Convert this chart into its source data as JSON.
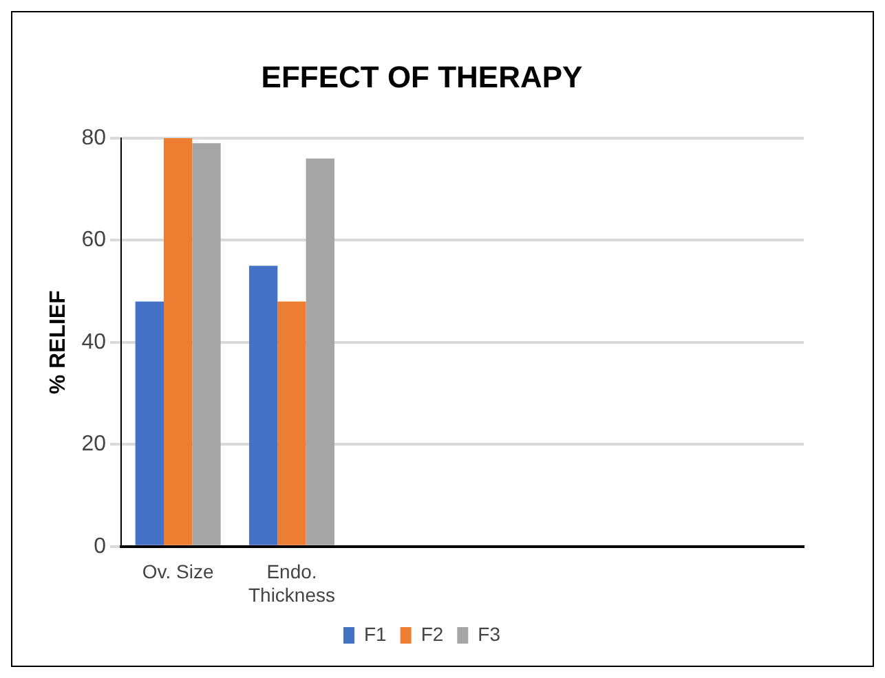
{
  "chart_data": {
    "type": "bar",
    "title": "EFFECT OF THERAPY",
    "ylabel": "% RELIEF",
    "categories": [
      "Ov. Size",
      "Endo. Thickness",
      null,
      null,
      null,
      null
    ],
    "series": [
      {
        "name": "F1",
        "color": "#4472c4",
        "values": [
          48,
          55,
          null,
          null,
          null,
          null
        ]
      },
      {
        "name": "F2",
        "color": "#ed7d31",
        "values": [
          80,
          48,
          null,
          null,
          null,
          null
        ]
      },
      {
        "name": "F3",
        "color": "#a5a5a5",
        "values": [
          79,
          76,
          null,
          null,
          null,
          null
        ]
      }
    ],
    "ylim": [
      0,
      80
    ],
    "yticks": [
      0,
      20,
      40,
      60,
      80
    ],
    "grid": "y",
    "legend": "bottom"
  }
}
